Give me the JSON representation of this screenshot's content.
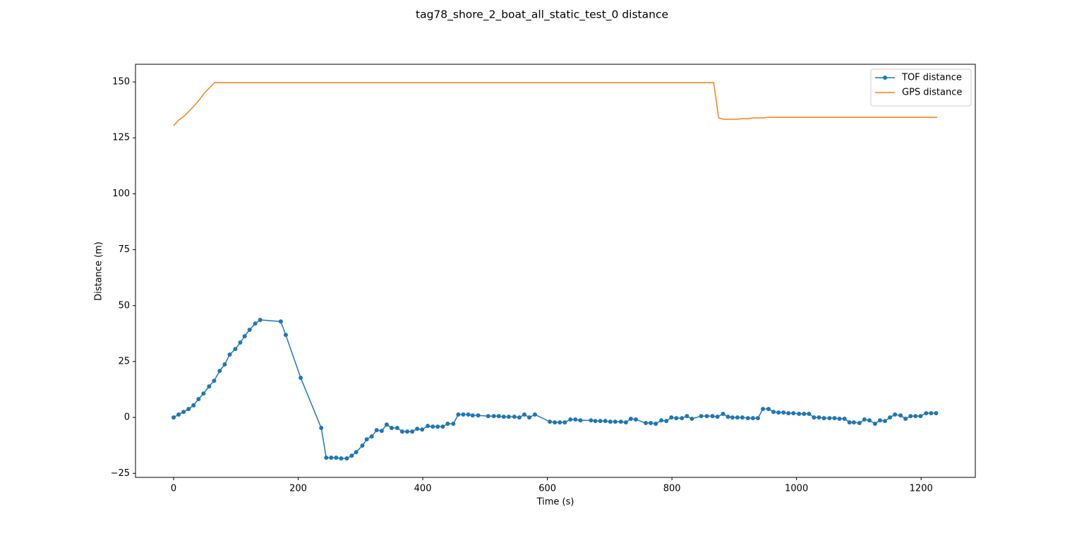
{
  "chart_data": {
    "type": "line",
    "title": "tag78_shore_2_boat_all_static_test_0 distance",
    "xlabel": "Time (s)",
    "ylabel": "Distance (m)",
    "xlim": [
      -61.2,
      1287
    ],
    "ylim": [
      -26.8,
      157.9
    ],
    "xticks": [
      0,
      200,
      400,
      600,
      800,
      1000,
      1200
    ],
    "yticks": [
      {
        "value": -25,
        "label": "−25"
      },
      0,
      25,
      50,
      75,
      100,
      125,
      150
    ],
    "legend": "upper right",
    "grid": false,
    "series": [
      {
        "name": "TOF distance",
        "color": "#1f77b4",
        "marker": true,
        "x": [
          0,
          8,
          16,
          24,
          32,
          40,
          48,
          57,
          65,
          74,
          82,
          90,
          99,
          107,
          114,
          122,
          131,
          139,
          172,
          180,
          204,
          237,
          245,
          253,
          261,
          269,
          278,
          286,
          293,
          303,
          310,
          318,
          326,
          334,
          342,
          350,
          359,
          367,
          375,
          383,
          391,
          399,
          408,
          416,
          424,
          432,
          440,
          449,
          457,
          465,
          473,
          480,
          489,
          505,
          514,
          522,
          530,
          538,
          547,
          555,
          563,
          571,
          580,
          604,
          612,
          620,
          628,
          637,
          645,
          653,
          670,
          677,
          685,
          693,
          701,
          709,
          718,
          726,
          734,
          742,
          758,
          766,
          774,
          783,
          791,
          799,
          807,
          816,
          824,
          832,
          847,
          856,
          865,
          873,
          882,
          890,
          897,
          905,
          913,
          922,
          930,
          938,
          946,
          955,
          963,
          971,
          979,
          987,
          995,
          1004,
          1012,
          1020,
          1028,
          1036,
          1044,
          1053,
          1061,
          1069,
          1077,
          1085,
          1092,
          1101,
          1109,
          1117,
          1126,
          1134,
          1142,
          1150,
          1158,
          1167,
          1175,
          1183,
          1191,
          1199,
          1208,
          1216,
          1224
        ],
        "values": [
          0,
          1.3,
          2.5,
          3.8,
          5.4,
          8.2,
          10.7,
          13.9,
          16.4,
          20.8,
          23.7,
          28.1,
          30.6,
          33.5,
          36.3,
          39.2,
          42.0,
          43.6,
          42.9,
          36.9,
          17.7,
          -4.7,
          -18.0,
          -18.0,
          -18.0,
          -18.3,
          -18.3,
          -17.1,
          -15.5,
          -12.6,
          -9.8,
          -8.5,
          -5.7,
          -6.0,
          -3.2,
          -4.7,
          -4.7,
          -6.3,
          -6.3,
          -6.3,
          -5.1,
          -5.4,
          -3.8,
          -4.1,
          -4.1,
          -4.1,
          -2.8,
          -2.8,
          1.3,
          1.3,
          1.3,
          0.9,
          0.9,
          0.6,
          0.6,
          0.6,
          0.3,
          0.3,
          0.3,
          0,
          1.3,
          0,
          1.3,
          -1.9,
          -2.2,
          -2.2,
          -2.2,
          -0.9,
          -0.9,
          -1.3,
          -1.3,
          -1.6,
          -1.6,
          -1.6,
          -1.9,
          -1.9,
          -1.9,
          -2.2,
          -0.6,
          -0.9,
          -2.5,
          -2.5,
          -2.8,
          -1.3,
          -1.6,
          0,
          -0.3,
          -0.3,
          0.6,
          -0.6,
          0.6,
          0.6,
          0.6,
          0.3,
          1.6,
          0.3,
          0,
          0,
          0,
          -0.3,
          -0.3,
          -0.3,
          3.8,
          3.8,
          2.5,
          2.2,
          2.2,
          1.9,
          1.9,
          1.6,
          1.6,
          1.6,
          0,
          0,
          -0.3,
          -0.3,
          -0.3,
          -0.6,
          -0.6,
          -2.2,
          -2.2,
          -2.5,
          -0.9,
          -1.3,
          -2.8,
          -1.3,
          -1.6,
          0,
          1.3,
          0.9,
          -0.6,
          0.6,
          0.6,
          0.6,
          1.9,
          1.9,
          1.9
        ]
      },
      {
        "name": "GPS distance",
        "color": "#ff7f0e",
        "marker": false,
        "x": [
          0,
          8,
          16,
          24,
          32,
          40,
          48,
          57,
          66,
          867,
          875,
          883,
          905,
          913,
          922,
          930,
          947,
          955,
          1226
        ],
        "values": [
          130.4,
          132.9,
          134.5,
          136.7,
          139,
          141.5,
          144.6,
          147.2,
          149.7,
          149.7,
          133.9,
          133.3,
          133.3,
          133.6,
          133.6,
          133.9,
          133.9,
          134.2,
          134.2
        ]
      }
    ]
  }
}
